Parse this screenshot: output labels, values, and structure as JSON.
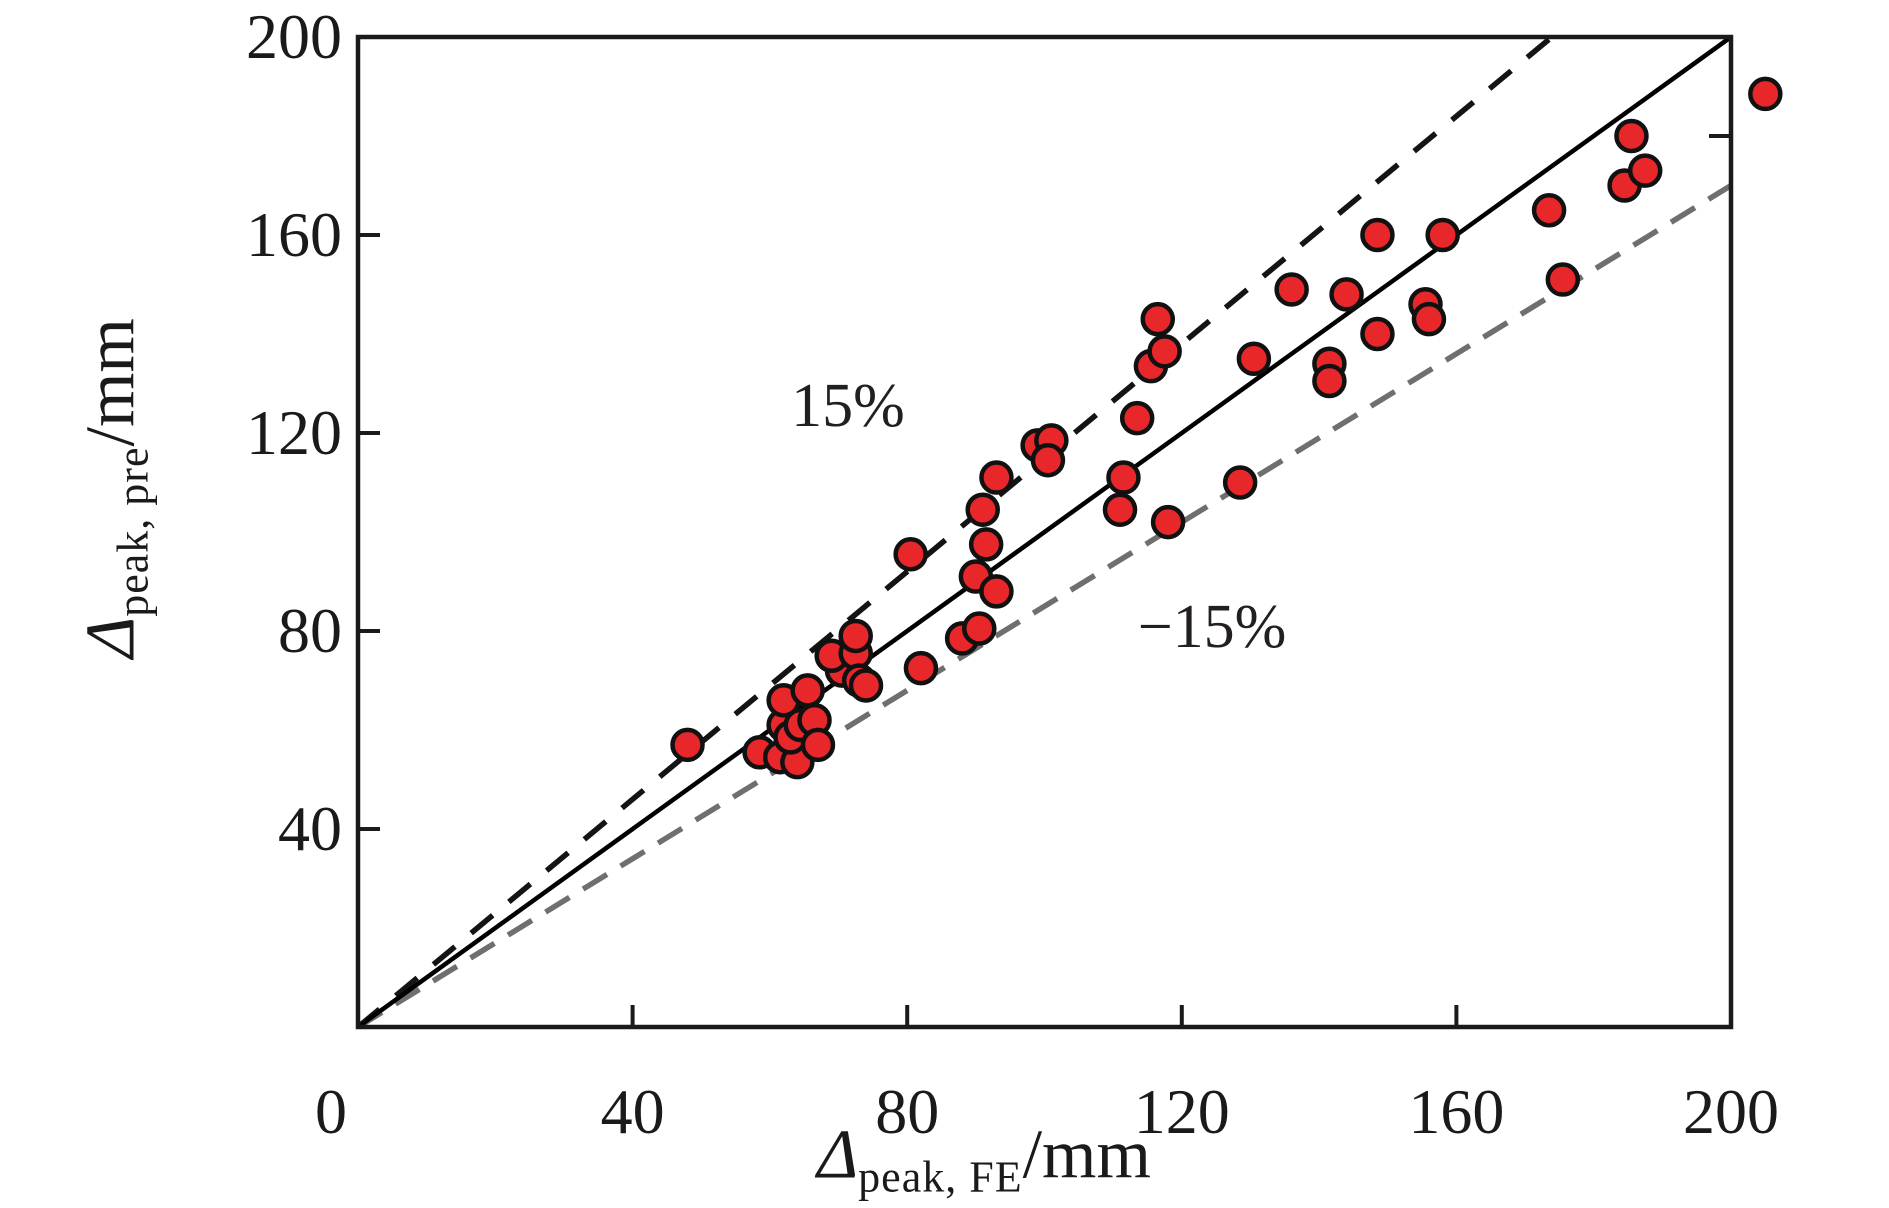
{
  "figure": {
    "background": "#ffffff",
    "text_color": "#1a1a1a"
  },
  "axes": {
    "x": {
      "symbol": "Δ",
      "subscript": "peak, FE",
      "unit": "/mm",
      "min": 0,
      "max": 200,
      "tick_values": [
        0,
        40,
        80,
        120,
        160,
        200
      ]
    },
    "y": {
      "symbol": "Δ",
      "subscript": "peak, pre",
      "unit": "/mm",
      "min": 0,
      "max": 200,
      "tick_values": [
        0,
        40,
        80,
        120,
        160,
        200
      ],
      "right_spine_tick_value": 180
    }
  },
  "annotations": {
    "plus15": "15%",
    "minus15": "−15%"
  },
  "chart_data": {
    "type": "scatter",
    "title": "",
    "xlabel": "Δ_peak,FE /mm",
    "ylabel": "Δ_peak,pre /mm",
    "xlim": [
      0,
      200
    ],
    "ylim": [
      0,
      200
    ],
    "grid": false,
    "legend": "none",
    "marker": {
      "shape": "circle",
      "fill": "#e8272a",
      "stroke": "#111111"
    },
    "reference_lines": [
      {
        "name": "plus-15-percent",
        "equation": "y = 1.15x",
        "slope": 1.15,
        "style": "dashed",
        "color": "#141414",
        "label": "15%"
      },
      {
        "name": "minus-15-percent",
        "equation": "y = 0.85x",
        "slope": 0.85,
        "style": "dashed",
        "color": "#6f6f6f",
        "label": "−15%"
      },
      {
        "name": "identity",
        "equation": "y = x",
        "slope": 1,
        "style": "solid",
        "color": "#000000",
        "label": ""
      }
    ],
    "points": [
      [
        48,
        57
      ],
      [
        58.5,
        55.5
      ],
      [
        61.5,
        54.5
      ],
      [
        64,
        53.5
      ],
      [
        62,
        61
      ],
      [
        63,
        58.5
      ],
      [
        64.5,
        61
      ],
      [
        66.5,
        62
      ],
      [
        67,
        57
      ],
      [
        62,
        66
      ],
      [
        65.5,
        68
      ],
      [
        70.5,
        72
      ],
      [
        69,
        75
      ],
      [
        72.5,
        75.5
      ],
      [
        72.5,
        79
      ],
      [
        73,
        70
      ],
      [
        74,
        69
      ],
      [
        82,
        72.5
      ],
      [
        88,
        78.5
      ],
      [
        90.5,
        80.5
      ],
      [
        80.5,
        95.5
      ],
      [
        90,
        91
      ],
      [
        91,
        104.5
      ],
      [
        91.5,
        97.5
      ],
      [
        93,
        88
      ],
      [
        93,
        111
      ],
      [
        99,
        117.5
      ],
      [
        101,
        118.5
      ],
      [
        100.5,
        114.5
      ],
      [
        111.5,
        111
      ],
      [
        111,
        104.5
      ],
      [
        113.5,
        123
      ],
      [
        115.5,
        133.5
      ],
      [
        117.5,
        136.5
      ],
      [
        116.5,
        143
      ],
      [
        118,
        102
      ],
      [
        128.5,
        110
      ],
      [
        130.5,
        135
      ],
      [
        136,
        149
      ],
      [
        144,
        148
      ],
      [
        141.5,
        134
      ],
      [
        141.5,
        130.5
      ],
      [
        148.5,
        160
      ],
      [
        155.5,
        146
      ],
      [
        156,
        143
      ],
      [
        148.5,
        140
      ],
      [
        158,
        160
      ],
      [
        173.5,
        165
      ],
      [
        175.5,
        151
      ],
      [
        184.5,
        170
      ],
      [
        187.5,
        173
      ],
      [
        185.5,
        180
      ],
      [
        205,
        188.5
      ]
    ]
  }
}
